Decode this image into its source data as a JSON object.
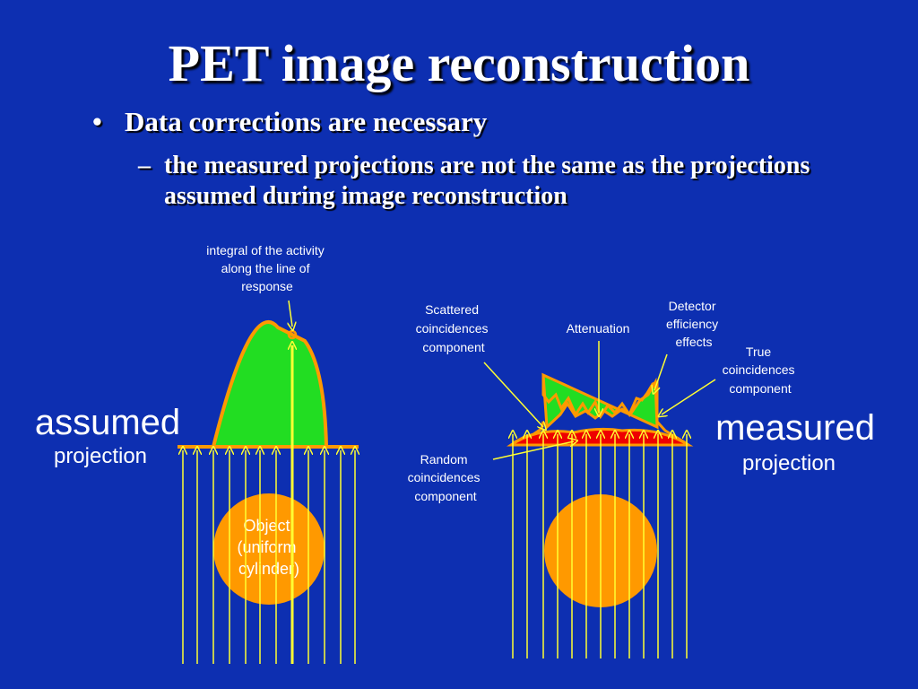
{
  "title": "PET image reconstruction",
  "bullets": {
    "level1_marker": "•",
    "level1": "Data corrections are necessary",
    "level2_marker": "–",
    "level2": "the measured projections are not the same as the projections assumed during image reconstruction"
  },
  "diagram": {
    "colors": {
      "background": "#0d2fb1",
      "lines": "#ffff33",
      "object": "#ff9900",
      "true_fill": "#22dd22",
      "outline": "#ff9900",
      "random_fill": "#ee0000",
      "label_text": "#ffffff"
    },
    "left": {
      "big_label": "assumed",
      "small_label": "projection",
      "annotation": [
        "integral of the activity",
        "along the line of",
        "response"
      ],
      "object_text": [
        "Object",
        "(uniform",
        "cylinder)"
      ]
    },
    "right": {
      "big_label": "measured",
      "small_label": "projection",
      "annotations": {
        "scattered": [
          "Scattered",
          "coincidences",
          "component"
        ],
        "attenuation": [
          "Attenuation"
        ],
        "detector": [
          "Detector",
          "efficiency",
          "effects"
        ],
        "true": [
          "True",
          "coincidences",
          "component"
        ],
        "random": [
          "Random",
          "coincidences",
          "component"
        ]
      }
    }
  }
}
